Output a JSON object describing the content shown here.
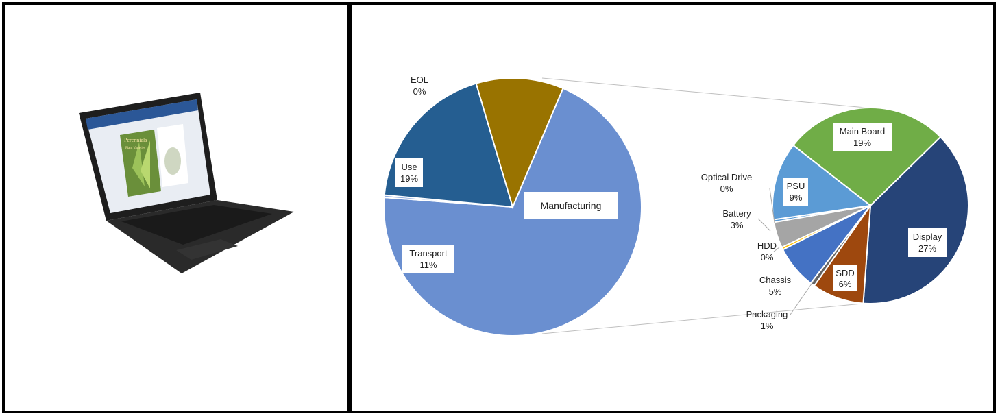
{
  "image": {
    "description_icon": "laptop-icon",
    "screen_doc_title": "Perennials",
    "screen_doc_subtitle": "Plant Varieties"
  },
  "colors": {
    "manufacturing": "#6a8fd0",
    "use": "#255e91",
    "transport": "#997300",
    "eol": "#8faadc",
    "main_board": "#70ad47",
    "display": "#264478",
    "sdd": "#9e480e",
    "packaging": "#636363",
    "chassis": "#4472c4",
    "hdd": "#ffc000",
    "battery": "#a5a5a5",
    "optical_drive": "#5b9bd5",
    "psu": "#5b9bd5",
    "connector": "#bfbfbf"
  },
  "chart_data": {
    "type": "pie",
    "variant": "pie-of-pie",
    "main_pie": {
      "slices": [
        {
          "label": "Manufacturing",
          "percent_label": "",
          "value": 70
        },
        {
          "label": "EOL",
          "percent_label": "0%",
          "value": 0.3
        },
        {
          "label": "Use",
          "percent_label": "19%",
          "value": 19
        },
        {
          "label": "Transport",
          "percent_label": "11%",
          "value": 11
        }
      ]
    },
    "secondary_pie": {
      "slices": [
        {
          "label": "Main Board",
          "percent_label": "19%",
          "value": 19
        },
        {
          "label": "Display",
          "percent_label": "27%",
          "value": 27
        },
        {
          "label": "SDD",
          "percent_label": "6%",
          "value": 6
        },
        {
          "label": "Packaging",
          "percent_label": "1%",
          "value": 0.5
        },
        {
          "label": "Chassis",
          "percent_label": "5%",
          "value": 5
        },
        {
          "label": "HDD",
          "percent_label": "0%",
          "value": 0.3
        },
        {
          "label": "Battery",
          "percent_label": "3%",
          "value": 3
        },
        {
          "label": "Optical Drive",
          "percent_label": "0%",
          "value": 0.3
        },
        {
          "label": "PSU",
          "percent_label": "9%",
          "value": 9
        }
      ]
    }
  }
}
